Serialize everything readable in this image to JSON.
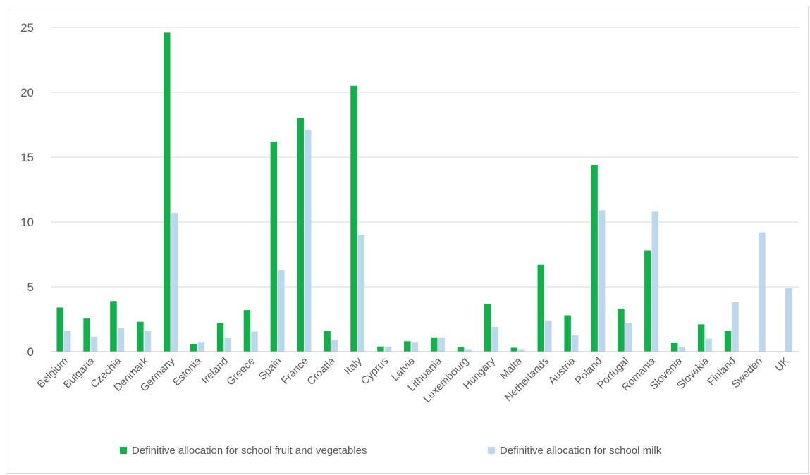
{
  "chart_data": {
    "type": "bar",
    "title": "",
    "xlabel": "",
    "ylabel": "",
    "ylim": [
      0,
      25
    ],
    "yticks": [
      0,
      5,
      10,
      15,
      20,
      25
    ],
    "grid": true,
    "legend_position": "bottom",
    "categories": [
      "Belgium",
      "Bulgaria",
      "Czechia",
      "Denmark",
      "Germany",
      "Estonia",
      "Ireland",
      "Greece",
      "Spain",
      "France",
      "Croatia",
      "Italy",
      "Cyprus",
      "Latvia",
      "Lithuania",
      "Luxembourg",
      "Hungary",
      "Malta",
      "Netherlands",
      "Austria",
      "Poland",
      "Portugal",
      "Romania",
      "Slovenia",
      "Slovakia",
      "Finland",
      "Sweden",
      "UK"
    ],
    "series": [
      {
        "name": "Definitive allocation for school fruit and vegetables",
        "color": "#12b04b",
        "values": [
          3.4,
          2.6,
          3.9,
          2.3,
          24.6,
          0.6,
          2.2,
          3.2,
          16.2,
          18.0,
          1.6,
          20.5,
          0.4,
          0.8,
          1.1,
          0.35,
          3.7,
          0.3,
          6.7,
          2.8,
          14.4,
          3.3,
          7.8,
          0.7,
          2.1,
          1.6,
          0,
          0
        ]
      },
      {
        "name": "Definitive allocation for school milk",
        "color": "#bdd7ee",
        "values": [
          1.6,
          1.15,
          1.8,
          1.6,
          10.7,
          0.75,
          1.05,
          1.55,
          6.3,
          17.1,
          0.9,
          9.0,
          0.4,
          0.75,
          1.1,
          0.2,
          1.9,
          0.2,
          2.4,
          1.25,
          10.9,
          2.2,
          10.8,
          0.35,
          1.0,
          3.8,
          9.2,
          4.9
        ]
      }
    ]
  }
}
